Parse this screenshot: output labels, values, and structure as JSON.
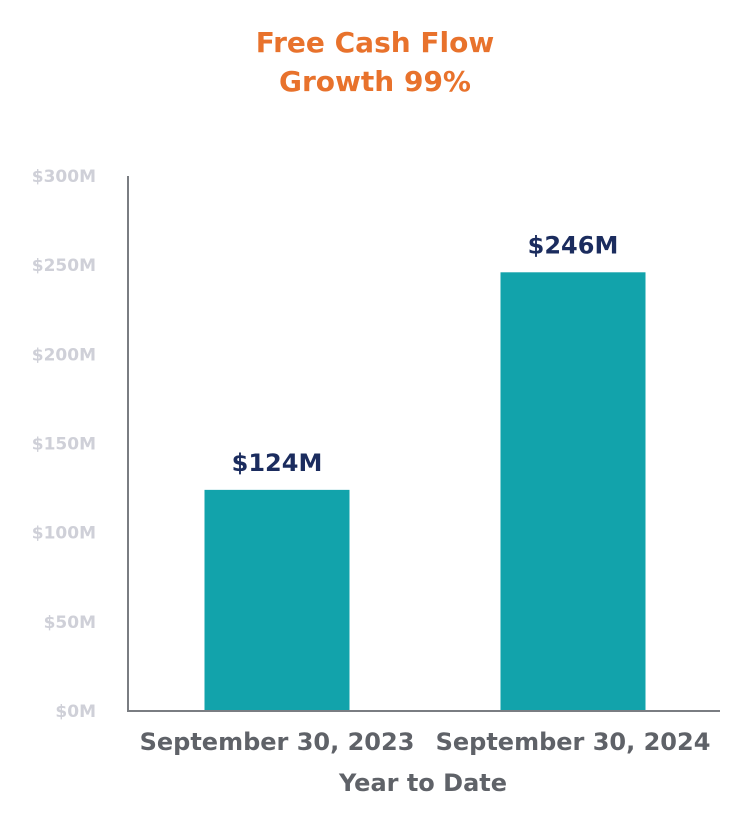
{
  "colors": {
    "title": "#e8722c",
    "bar": "#12a3ab",
    "data_label": "#1b2c5e",
    "tick_label": "#cfd0d8",
    "category_label": "#5f6268",
    "axis": "#7a7d82"
  },
  "chart_data": {
    "type": "bar",
    "title_lines": [
      "Free Cash Flow",
      "Growth 99%"
    ],
    "categories": [
      "September 30, 2023",
      "September 30, 2024"
    ],
    "values": [
      124,
      246
    ],
    "value_labels": [
      "$124M",
      "$246M"
    ],
    "xlabel": "Year to Date",
    "ylabel": "",
    "ylim": [
      0,
      300
    ],
    "yticks": [
      0,
      50,
      100,
      150,
      200,
      250,
      300
    ],
    "ytick_labels": [
      "$0M",
      "$50M",
      "$100M",
      "$150M",
      "$200M",
      "$250M",
      "$300M"
    ],
    "grid": false,
    "legend": "none"
  }
}
